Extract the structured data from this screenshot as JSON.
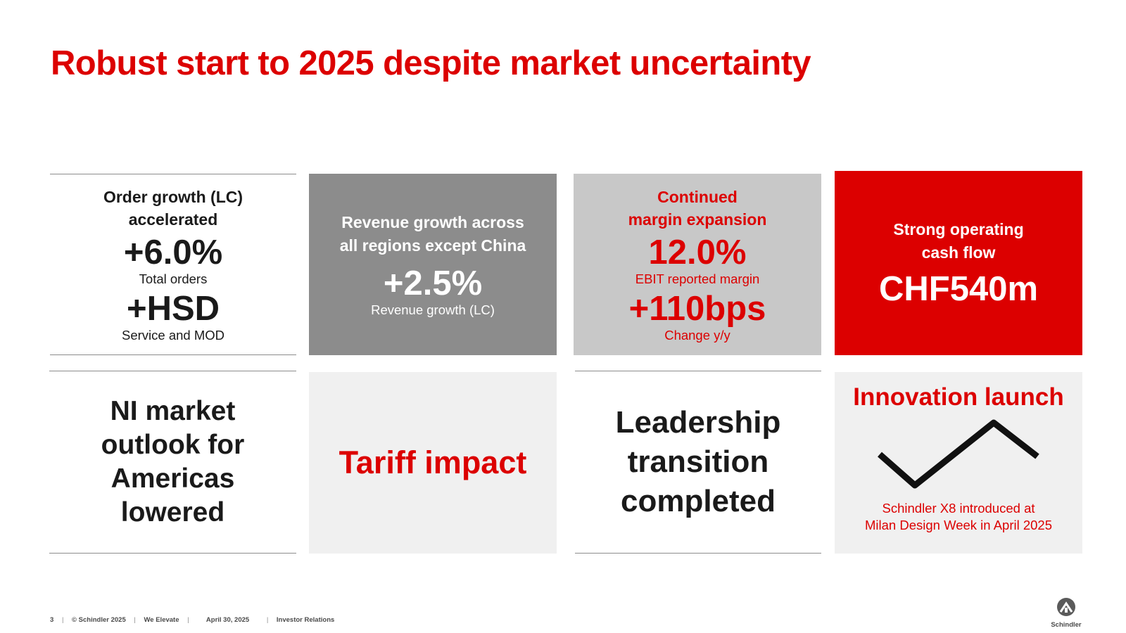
{
  "title": "Robust start to 2025 despite market uncertainty",
  "tiles": {
    "orders": {
      "heading_line1": "Order growth (LC)",
      "heading_line2": "accelerated",
      "value1": "+6.0%",
      "label1": "Total orders",
      "value2": "+HSD",
      "label2": "Service and MOD"
    },
    "revenue": {
      "heading_line1": "Revenue growth across",
      "heading_line2": "all regions except China",
      "value": "+2.5%",
      "label": "Revenue growth (LC)"
    },
    "margin": {
      "heading_line1": "Continued",
      "heading_line2": "margin expansion",
      "value1": "12.0%",
      "label1": "EBIT reported margin",
      "value2": "+110bps",
      "label2": "Change y/y"
    },
    "cashflow": {
      "heading_line1": "Strong operating",
      "heading_line2": "cash flow",
      "value": "CHF540m"
    },
    "outlook": {
      "line1": "NI market",
      "line2": "outlook for",
      "line3": "Americas",
      "line4": "lowered"
    },
    "tariff": {
      "text": "Tariff impact"
    },
    "leadership": {
      "line1": "Leadership",
      "line2": "transition",
      "line3": "completed"
    },
    "innovation": {
      "title": "Innovation launch",
      "icon": "schindler-x8-chevron-icon",
      "caption_line1": "Schindler X8 introduced at",
      "caption_line2": "Milan Design Week in April 2025"
    }
  },
  "footer": {
    "page_number": "3",
    "copyright": "© Schindler 2025",
    "tagline": "We Elevate",
    "date": "April 30, 2025",
    "department": "Investor Relations",
    "separator": "|"
  },
  "logo": {
    "icon": "schindler-logo-icon",
    "wordmark": "Schindler"
  },
  "colors": {
    "brand_red": "#dc0000",
    "tile_dark_grey": "#8c8c8c",
    "tile_mid_grey": "#c8c8c8",
    "tile_light_grey": "#f0f0f0",
    "text_dark": "#1a1a1a"
  }
}
